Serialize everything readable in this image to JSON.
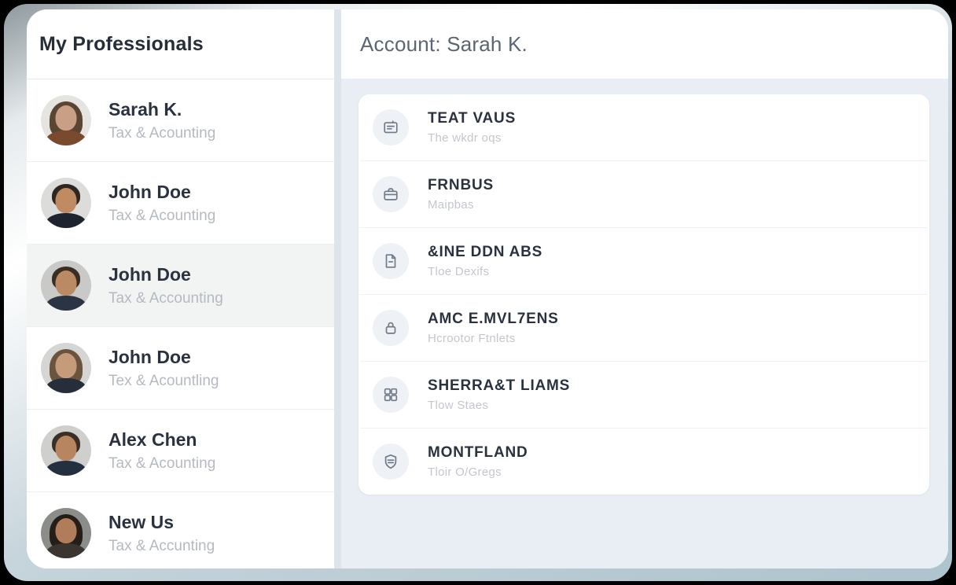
{
  "colors": {
    "frame": "#adc3cd",
    "main_background": "#e9eef4",
    "card_background": "#ffffff",
    "title_text": "#2a3240",
    "muted_text": "#b5bac0",
    "icon_color": "#6f7a88"
  },
  "sidebar": {
    "title": "My Professionals",
    "items": [
      {
        "name": "Sarah K.",
        "subtitle": "Tax & Acounting",
        "selected": false,
        "avatar": {
          "bg": "#e6e4e0",
          "hair": "#5a4432",
          "skin": "#c99f85",
          "suit": "#7a4a2e",
          "hairstyle": "long"
        }
      },
      {
        "name": "John Doe",
        "subtitle": "Tax & Acounting",
        "selected": false,
        "avatar": {
          "bg": "#dcdcda",
          "hair": "#2e2620",
          "skin": "#c08a63",
          "suit": "#1d2430",
          "hairstyle": "short"
        }
      },
      {
        "name": "John Doe",
        "subtitle": "Tax & Accounting",
        "selected": true,
        "avatar": {
          "bg": "#c9c9c7",
          "hair": "#3a2e24",
          "skin": "#b98a64",
          "suit": "#2a3442",
          "hairstyle": "short"
        }
      },
      {
        "name": "John Doe",
        "subtitle": "Tex & Acountling",
        "selected": false,
        "avatar": {
          "bg": "#d5d5d3",
          "hair": "#6b543d",
          "skin": "#c69b7b",
          "suit": "#252e3a",
          "hairstyle": "long"
        }
      },
      {
        "name": "Alex Chen",
        "subtitle": "Tax & Acounting",
        "selected": false,
        "avatar": {
          "bg": "#cfcfcd",
          "hair": "#3a2e26",
          "skin": "#b7855f",
          "suit": "#23303f",
          "hairstyle": "short"
        }
      },
      {
        "name": "New Us",
        "subtitle": "Tax & Accunting",
        "selected": false,
        "avatar": {
          "bg": "#8a8d89",
          "hair": "#241d18",
          "skin": "#b07c5a",
          "suit": "#3a352f",
          "hairstyle": "long"
        }
      }
    ]
  },
  "header": {
    "title": "Account: Sarah K."
  },
  "menu": {
    "items": [
      {
        "icon": "document-card-icon",
        "title": "TEAT VAUS",
        "subtitle": "The wkdr oqs"
      },
      {
        "icon": "briefcase-icon",
        "title": "FRNBUS",
        "subtitle": "Maipbas"
      },
      {
        "icon": "file-icon",
        "title": "&INE DDN ABS",
        "subtitle": "Tloe Dexifs"
      },
      {
        "icon": "lock-icon",
        "title": "AMC E.MVL7ENS",
        "subtitle": "Hcrootor Ftnlets"
      },
      {
        "icon": "grid-icon",
        "title": "SHERRA&T LIAMS",
        "subtitle": "Tlow Staes"
      },
      {
        "icon": "shield-icon",
        "title": "MONTFLAND",
        "subtitle": "Tloir O/Gregs"
      }
    ]
  }
}
